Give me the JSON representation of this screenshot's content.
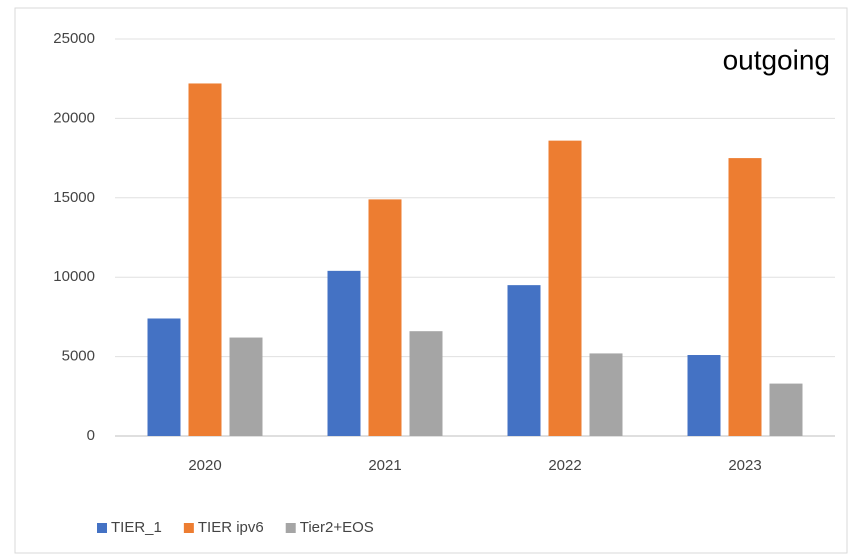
{
  "chart_data": {
    "type": "bar",
    "annotation": "outgoing",
    "categories": [
      "2020",
      "2021",
      "2022",
      "2023"
    ],
    "series": [
      {
        "name": "TIER_1",
        "color": "#4472c4",
        "values": [
          7400,
          10400,
          9500,
          5100
        ]
      },
      {
        "name": "TIER ipv6",
        "color": "#ed7d31",
        "values": [
          22200,
          14900,
          18600,
          17500
        ]
      },
      {
        "name": "Tier2+EOS",
        "color": "#a5a5a5",
        "values": [
          6200,
          6600,
          5200,
          3300
        ]
      }
    ],
    "ylim": [
      0,
      25000
    ],
    "yticks": [
      0,
      5000,
      10000,
      15000,
      20000,
      25000
    ],
    "grid": true,
    "legend": "bottom"
  }
}
